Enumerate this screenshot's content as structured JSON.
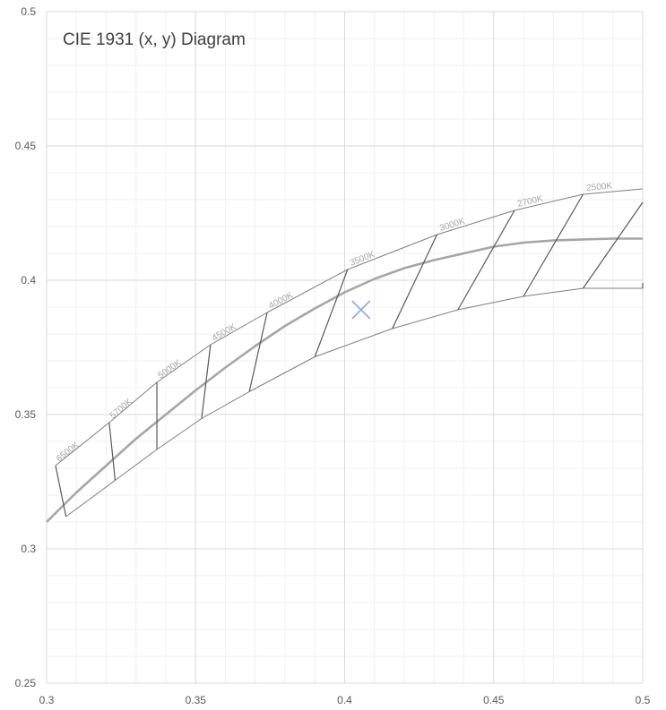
{
  "chart_data": {
    "type": "line",
    "title": "CIE 1931 (x, y) Diagram",
    "xlabel": "",
    "ylabel": "",
    "xlim": [
      0.3,
      0.5
    ],
    "ylim": [
      0.25,
      0.5
    ],
    "x_ticks": [
      0.3,
      0.35,
      0.4,
      0.45,
      0.5
    ],
    "y_ticks": [
      0.25,
      0.3,
      0.35,
      0.4,
      0.45,
      0.5
    ],
    "x_tick_labels": [
      "0.3",
      "0.35",
      "0.4",
      "0.45",
      "0.5"
    ],
    "y_tick_labels": [
      "0.25",
      "0.3",
      "0.35",
      "0.4",
      "0.45",
      "0.5"
    ],
    "grid": true,
    "minor_grid": true,
    "legend": "none",
    "series": [
      {
        "role": "planckian-locus",
        "color": "#a6a6a6",
        "x": [
          0.3,
          0.305,
          0.31,
          0.32,
          0.33,
          0.34,
          0.35,
          0.36,
          0.37,
          0.38,
          0.39,
          0.4,
          0.41,
          0.42,
          0.43,
          0.44,
          0.45,
          0.46,
          0.47,
          0.48,
          0.49,
          0.5
        ],
        "y": [
          0.31,
          0.3155,
          0.321,
          0.331,
          0.341,
          0.35,
          0.359,
          0.3675,
          0.3755,
          0.383,
          0.3895,
          0.3955,
          0.4005,
          0.4045,
          0.4075,
          0.41,
          0.4125,
          0.414,
          0.4148,
          0.4152,
          0.4155,
          0.4155
        ]
      },
      {
        "role": "upper-tolerance-boundary",
        "color": "#7f7f7f",
        "x": [
          0.303,
          0.321,
          0.337,
          0.355,
          0.374,
          0.401,
          0.431,
          0.457,
          0.48,
          0.5
        ],
        "y": [
          0.331,
          0.347,
          0.362,
          0.376,
          0.388,
          0.404,
          0.417,
          0.426,
          0.432,
          0.434
        ]
      },
      {
        "role": "lower-tolerance-boundary",
        "color": "#7f7f7f",
        "x": [
          0.3065,
          0.323,
          0.337,
          0.352,
          0.368,
          0.39,
          0.416,
          0.438,
          0.46,
          0.48,
          0.5
        ],
        "y": [
          0.312,
          0.3255,
          0.337,
          0.3485,
          0.3585,
          0.3715,
          0.382,
          0.389,
          0.394,
          0.397,
          0.397
        ]
      }
    ],
    "cct_segments": [
      {
        "label": "6500K",
        "x1": 0.303,
        "y1": 0.331,
        "x2": 0.3065,
        "y2": 0.312
      },
      {
        "label": "5700K",
        "x1": 0.321,
        "y1": 0.347,
        "x2": 0.323,
        "y2": 0.3255
      },
      {
        "label": "5000K",
        "x1": 0.337,
        "y1": 0.362,
        "x2": 0.337,
        "y2": 0.337
      },
      {
        "label": "4500K",
        "x1": 0.355,
        "y1": 0.376,
        "x2": 0.352,
        "y2": 0.3485
      },
      {
        "label": "4000K",
        "x1": 0.374,
        "y1": 0.388,
        "x2": 0.368,
        "y2": 0.3585
      },
      {
        "label": "3500K",
        "x1": 0.401,
        "y1": 0.404,
        "x2": 0.39,
        "y2": 0.3715
      },
      {
        "label": "3000K",
        "x1": 0.431,
        "y1": 0.417,
        "x2": 0.416,
        "y2": 0.382
      },
      {
        "label": "2700K",
        "x1": 0.457,
        "y1": 0.426,
        "x2": 0.438,
        "y2": 0.389
      },
      {
        "label": "2500K",
        "x1": 0.48,
        "y1": 0.432,
        "x2": 0.46,
        "y2": 0.394
      }
    ],
    "extra_segments": [
      {
        "x1": 0.5,
        "y1": 0.429,
        "x2": 0.48,
        "y2": 0.397
      },
      {
        "x1": 0.5,
        "y1": 0.399,
        "x2": 0.5,
        "y2": 0.397
      }
    ],
    "marker": {
      "shape": "x",
      "color": "#8faadc",
      "x": 0.4055,
      "y": 0.389
    }
  }
}
